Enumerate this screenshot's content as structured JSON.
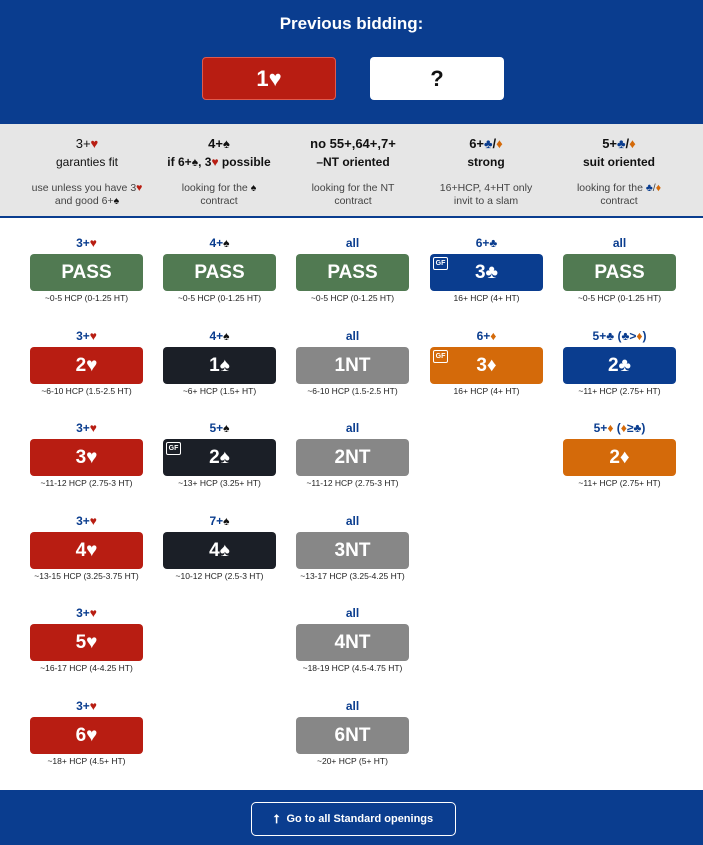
{
  "header": {
    "title": "Previous bidding:",
    "current_bid": "1♥",
    "next_bid": "?"
  },
  "categories": [
    {
      "title": "3+♥",
      "subtitle": "garanties fit",
      "desc_line1": "use unless you have 3♥",
      "desc_line2": "and good 6+♠"
    },
    {
      "title": "4+♠",
      "subtitle": "if 6+♠, 3♥ possible",
      "desc_line1": "looking for the ♠",
      "desc_line2": "contract"
    },
    {
      "title": "no 55+,64+,7+",
      "subtitle": "–NT oriented",
      "desc_line1": "looking for the NT",
      "desc_line2": "contract"
    },
    {
      "title": "6+♣/♦",
      "subtitle": "strong",
      "desc_line1": "16+HCP, 4+HT only",
      "desc_line2": "invit to a slam"
    },
    {
      "title": "5+♣/♦",
      "subtitle": "suit oriented",
      "desc_line1": "looking for the ♣/♦",
      "desc_line2": "contract"
    }
  ],
  "columns": [
    [
      {
        "cond": "3+♥",
        "label": "PASS",
        "color": "#517a52",
        "gf": false,
        "hcp": "~0-5 HCP (0-1.25 HT)"
      },
      {
        "cond": "3+♥",
        "label": "2♥",
        "color": "#b81d12",
        "gf": false,
        "hcp": "~6-10 HCP (1.5-2.5 HT)"
      },
      {
        "cond": "3+♥",
        "label": "3♥",
        "color": "#b81d12",
        "gf": false,
        "hcp": "~11-12 HCP (2.75-3 HT)"
      },
      {
        "cond": "3+♥",
        "label": "4♥",
        "color": "#b81d12",
        "gf": false,
        "hcp": "~13-15 HCP (3.25-3.75 HT)"
      },
      {
        "cond": "3+♥",
        "label": "5♥",
        "color": "#b81d12",
        "gf": false,
        "hcp": "~16-17 HCP (4-4.25 HT)"
      },
      {
        "cond": "3+♥",
        "label": "6♥",
        "color": "#b81d12",
        "gf": false,
        "hcp": "~18+ HCP (4.5+ HT)"
      }
    ],
    [
      {
        "cond": "4+♠",
        "label": "PASS",
        "color": "#517a52",
        "gf": false,
        "hcp": "~0-5 HCP (0-1.25 HT)"
      },
      {
        "cond": "4+♠",
        "label": "1♠",
        "color": "#1b1f27",
        "gf": false,
        "hcp": "~6+ HCP (1.5+ HT)"
      },
      {
        "cond": "5+♠",
        "label": "2♠",
        "color": "#1b1f27",
        "gf": true,
        "hcp": "~13+ HCP (3.25+ HT)"
      },
      {
        "cond": "7+♠",
        "label": "4♠",
        "color": "#1b1f27",
        "gf": false,
        "hcp": "~10-12 HCP (2.5-3 HT)"
      }
    ],
    [
      {
        "cond": "all",
        "label": "PASS",
        "color": "#517a52",
        "gf": false,
        "hcp": "~0-5 HCP (0-1.25 HT)"
      },
      {
        "cond": "all",
        "label": "1NT",
        "color": "#878787",
        "gf": false,
        "hcp": "~6-10 HCP (1.5-2.5 HT)"
      },
      {
        "cond": "all",
        "label": "2NT",
        "color": "#878787",
        "gf": false,
        "hcp": "~11-12 HCP (2.75-3 HT)"
      },
      {
        "cond": "all",
        "label": "3NT",
        "color": "#878787",
        "gf": false,
        "hcp": "~13-17 HCP (3.25-4.25 HT)"
      },
      {
        "cond": "all",
        "label": "4NT",
        "color": "#878787",
        "gf": false,
        "hcp": "~18-19 HCP (4.5-4.75 HT)"
      },
      {
        "cond": "all",
        "label": "6NT",
        "color": "#878787",
        "gf": false,
        "hcp": "~20+ HCP (5+ HT)"
      }
    ],
    [
      {
        "cond": "6+♣",
        "label": "3♣",
        "color": "#0a3d8f",
        "gf": true,
        "hcp": "16+ HCP (4+ HT)"
      },
      {
        "cond": "6+♦",
        "label": "3♦",
        "color": "#d46a0a",
        "gf": true,
        "hcp": "16+ HCP (4+ HT)"
      }
    ],
    [
      {
        "cond": "all",
        "label": "PASS",
        "color": "#517a52",
        "gf": false,
        "hcp": "~0-5 HCP (0-1.25 HT)"
      },
      {
        "cond": "5+♣ (♣>♦)",
        "label": "2♣",
        "color": "#0a3d8f",
        "gf": false,
        "hcp": "~11+ HCP (2.75+ HT)"
      },
      {
        "cond": "5+♦ (♦≥♣)",
        "label": "2♦",
        "color": "#d46a0a",
        "gf": false,
        "hcp": "~11+ HCP (2.75+ HT)"
      }
    ]
  ],
  "gf_label": "GF",
  "colors": {
    "heart": "#b81d12",
    "spade": "#111111",
    "diamond": "#d46a0a",
    "club": "#0a3d8f",
    "header_bg": "#0a3d8f"
  },
  "footer": {
    "arrow": "⭡",
    "button_label": "Go to all Standard openings"
  }
}
